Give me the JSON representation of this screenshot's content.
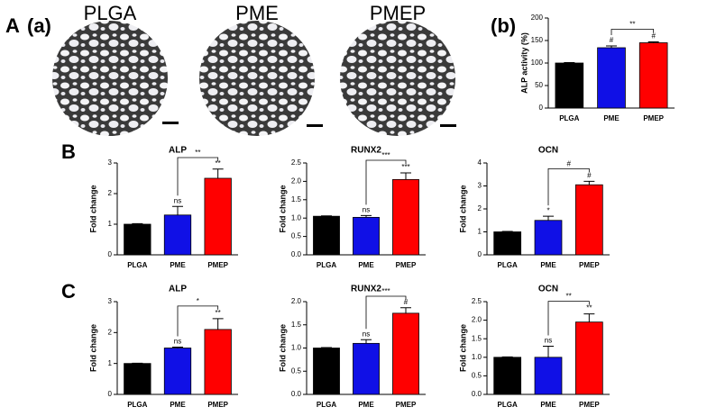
{
  "panel_labels": [
    "A",
    "(a)",
    "(b)",
    "B",
    "C"
  ],
  "micrographs": [
    "PLGA",
    "PME",
    "PMEP"
  ],
  "chart_data": [
    {
      "type": "bar",
      "y_label": "ALP activity (%)",
      "categories": [
        "PLGA",
        "PME",
        "PMEP"
      ],
      "values": [
        100,
        134,
        145
      ],
      "errors": [
        1,
        4,
        2
      ],
      "colors": [
        "#000000",
        "#1010e6",
        "#ff0000"
      ],
      "ylim": [
        0,
        200
      ],
      "yticks": [
        0,
        50,
        100,
        150,
        200
      ],
      "bar_labels": [
        null,
        "#",
        "#"
      ],
      "brackets": [
        {
          "between": [
            "PME",
            "PMEP"
          ],
          "label": "**"
        }
      ]
    },
    {
      "type": "bar",
      "title": "ALP",
      "y_label": "Fold change",
      "categories": [
        "PLGA",
        "PME",
        "PMEP"
      ],
      "values": [
        1.0,
        1.3,
        2.5
      ],
      "errors": [
        0.02,
        0.28,
        0.3
      ],
      "colors": [
        "#000000",
        "#1010e6",
        "#ff0000"
      ],
      "ylim": [
        0,
        3
      ],
      "yticks": [
        0,
        1,
        2,
        3
      ],
      "bar_labels": [
        null,
        "ns",
        "**"
      ],
      "brackets": [
        {
          "between": [
            "PME",
            "PMEP"
          ],
          "label": "**"
        }
      ]
    },
    {
      "type": "bar",
      "title": "RUNX2",
      "y_label": "Fold change",
      "categories": [
        "PLGA",
        "PME",
        "PMEP"
      ],
      "values": [
        1.05,
        1.02,
        2.05
      ],
      "errors": [
        0.01,
        0.05,
        0.18
      ],
      "colors": [
        "#000000",
        "#1010e6",
        "#ff0000"
      ],
      "ylim": [
        0,
        2.5
      ],
      "yticks": [
        {
          "value": 0,
          "label": "0.0"
        },
        0.5,
        {
          "value": 1,
          "label": "1.0"
        },
        1.5,
        {
          "value": 2,
          "label": "2.0"
        },
        2.5
      ],
      "bar_labels": [
        null,
        "ns",
        "***"
      ],
      "brackets": [
        {
          "between": [
            "PME",
            "PMEP"
          ],
          "label": "***"
        }
      ]
    },
    {
      "type": "bar",
      "title": "OCN",
      "y_label": "Fold change",
      "categories": [
        "PLGA",
        "PME",
        "PMEP"
      ],
      "values": [
        1.0,
        1.5,
        3.05
      ],
      "errors": [
        0.02,
        0.18,
        0.15
      ],
      "colors": [
        "#000000",
        "#1010e6",
        "#ff0000"
      ],
      "ylim": [
        0,
        4
      ],
      "yticks": [
        0,
        1,
        2,
        3,
        4
      ],
      "bar_labels": [
        null,
        "*",
        "#"
      ],
      "brackets": [
        {
          "between": [
            "PME",
            "PMEP"
          ],
          "label": "#"
        }
      ]
    },
    {
      "type": "bar",
      "title": "ALP",
      "y_label": "Fold change",
      "categories": [
        "PLGA",
        "PME",
        "PMEP"
      ],
      "values": [
        1.0,
        1.5,
        2.1
      ],
      "errors": [
        0.01,
        0.03,
        0.35
      ],
      "colors": [
        "#000000",
        "#1010e6",
        "#ff0000"
      ],
      "ylim": [
        0,
        3
      ],
      "yticks": [
        0,
        1,
        2,
        3
      ],
      "bar_labels": [
        null,
        "ns",
        "**"
      ],
      "brackets": [
        {
          "between": [
            "PME",
            "PMEP"
          ],
          "label": "*"
        }
      ]
    },
    {
      "type": "bar",
      "title": "RUNX2",
      "y_label": "Fold change",
      "categories": [
        "PLGA",
        "PME",
        "PMEP"
      ],
      "values": [
        1.0,
        1.1,
        1.75
      ],
      "errors": [
        0.01,
        0.08,
        0.12
      ],
      "colors": [
        "#000000",
        "#1010e6",
        "#ff0000"
      ],
      "ylim": [
        0,
        2
      ],
      "yticks": [
        {
          "value": 0,
          "label": "0.0"
        },
        0.5,
        {
          "value": 1,
          "label": "1.0"
        },
        1.5,
        {
          "value": 2,
          "label": "2.0"
        }
      ],
      "bar_labels": [
        null,
        "ns",
        "#"
      ],
      "brackets": [
        {
          "between": [
            "PME",
            "PMEP"
          ],
          "label": "***"
        }
      ]
    },
    {
      "type": "bar",
      "title": "OCN",
      "y_label": "Fold change",
      "categories": [
        "PLGA",
        "PME",
        "PMEP"
      ],
      "values": [
        1.0,
        1.0,
        1.95
      ],
      "errors": [
        0.01,
        0.3,
        0.22
      ],
      "colors": [
        "#000000",
        "#1010e6",
        "#ff0000"
      ],
      "ylim": [
        0,
        2.5
      ],
      "yticks": [
        {
          "value": 0,
          "label": "0.0"
        },
        0.5,
        {
          "value": 1,
          "label": "1.0"
        },
        1.5,
        {
          "value": 2,
          "label": "2.0"
        },
        2.5
      ],
      "bar_labels": [
        null,
        "ns",
        "**"
      ],
      "brackets": [
        {
          "between": [
            "PME",
            "PMEP"
          ],
          "label": "**"
        }
      ]
    }
  ]
}
